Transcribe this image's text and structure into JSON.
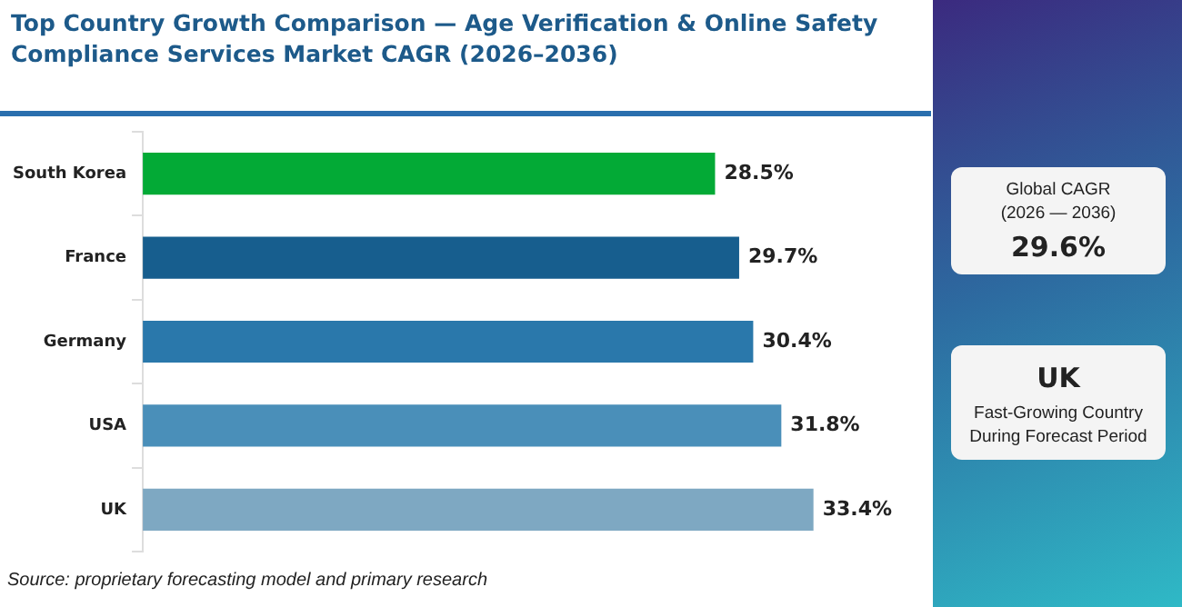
{
  "chart_data": {
    "type": "bar",
    "orientation": "horizontal",
    "title": "Top Country Growth Comparison — Age Verification & Online Safety Compliance Services Market CAGR (2026–2036)",
    "categories": [
      "South Korea",
      "France",
      "Germany",
      "USA",
      "UK"
    ],
    "values": [
      28.5,
      29.7,
      30.4,
      31.8,
      33.4
    ],
    "colors": [
      "#03aa36",
      "#175e8e",
      "#2a78ab",
      "#4a8fb9",
      "#7ea8c2"
    ],
    "value_labels": [
      "28.5%",
      "29.7%",
      "30.4%",
      "31.8%",
      "33.4%"
    ],
    "tick_labels": "y",
    "legend": false,
    "annotations": [
      "Global CAGR (2026 — 2036)",
      "29.6%",
      "UK",
      "Fast-Growing Country During Forecast Period",
      "Source: proprietary forecasting model and primary research"
    ]
  }
}
